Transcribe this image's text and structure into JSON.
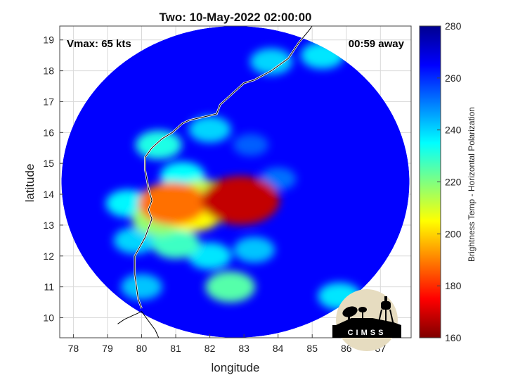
{
  "chart_data": {
    "type": "heatmap",
    "title": "Two: 10-May-2022 02:00:00",
    "xlabel": "longitude",
    "ylabel": "latitude",
    "xlim": [
      77.6,
      87.9
    ],
    "ylim": [
      9.35,
      19.45
    ],
    "xticks": [
      78,
      79,
      80,
      81,
      82,
      83,
      84,
      85,
      86,
      87
    ],
    "yticks": [
      10,
      11,
      12,
      13,
      14,
      15,
      16,
      17,
      18,
      19
    ],
    "grid": true,
    "annotations": {
      "vmax": "Vmax: 65 kts",
      "time_away": "00:59 away"
    },
    "colorbar": {
      "label": "Brightness Temp - Horizontal Polarization",
      "range": [
        160,
        280
      ],
      "ticks": [
        160,
        180,
        200,
        220,
        240,
        260,
        280
      ],
      "colors": [
        "#7f0000",
        "#ff0000",
        "#ff8000",
        "#ffff00",
        "#80ff80",
        "#00ffff",
        "#0080ff",
        "#0000ff",
        "#00008f"
      ]
    },
    "swath": {
      "center_lon": 82.75,
      "center_lat": 14.4,
      "background_temp": 265
    },
    "cold_regions": [
      {
        "lon": 82.9,
        "lat": 13.8,
        "temp": 168
      },
      {
        "lon": 80.9,
        "lat": 13.7,
        "temp": 188
      },
      {
        "lon": 81.5,
        "lat": 13.4,
        "temp": 205
      },
      {
        "lon": 81.8,
        "lat": 13.9,
        "temp": 212
      },
      {
        "lon": 80.5,
        "lat": 13.2,
        "temp": 218
      },
      {
        "lon": 81.0,
        "lat": 12.4,
        "temp": 228
      },
      {
        "lon": 82.6,
        "lat": 11.0,
        "temp": 225
      },
      {
        "lon": 81.2,
        "lat": 14.6,
        "temp": 235
      },
      {
        "lon": 80.5,
        "lat": 15.6,
        "temp": 232
      },
      {
        "lon": 82.0,
        "lat": 12.0,
        "temp": 238
      },
      {
        "lon": 85.3,
        "lat": 18.5,
        "temp": 238
      },
      {
        "lon": 83.8,
        "lat": 18.3,
        "temp": 240
      },
      {
        "lon": 79.6,
        "lat": 13.7,
        "temp": 236
      },
      {
        "lon": 79.8,
        "lat": 12.5,
        "temp": 240
      },
      {
        "lon": 80.0,
        "lat": 11.0,
        "temp": 242
      },
      {
        "lon": 82.0,
        "lat": 16.1,
        "temp": 240
      },
      {
        "lon": 83.3,
        "lat": 12.2,
        "temp": 242
      },
      {
        "lon": 85.8,
        "lat": 10.7,
        "temp": 238
      },
      {
        "lon": 84.0,
        "lat": 14.5,
        "temp": 252
      },
      {
        "lon": 83.2,
        "lat": 15.6,
        "temp": 254
      }
    ],
    "coastline": [
      [
        80.0,
        10.3
      ],
      [
        79.9,
        10.6
      ],
      [
        79.8,
        11.4
      ],
      [
        79.8,
        12.0
      ],
      [
        80.1,
        12.6
      ],
      [
        80.3,
        13.2
      ],
      [
        80.2,
        13.5
      ],
      [
        80.3,
        13.8
      ],
      [
        80.2,
        14.2
      ],
      [
        80.1,
        14.8
      ],
      [
        80.1,
        15.2
      ],
      [
        80.3,
        15.5
      ],
      [
        80.6,
        15.8
      ],
      [
        80.9,
        16.0
      ],
      [
        81.2,
        16.3
      ],
      [
        81.4,
        16.4
      ],
      [
        81.8,
        16.5
      ],
      [
        82.2,
        16.6
      ],
      [
        82.3,
        16.9
      ],
      [
        82.6,
        17.2
      ],
      [
        83.0,
        17.6
      ],
      [
        83.3,
        17.7
      ],
      [
        83.8,
        18.0
      ],
      [
        84.3,
        18.4
      ],
      [
        84.6,
        18.9
      ],
      [
        84.9,
        19.3
      ],
      [
        85.0,
        19.45
      ]
    ],
    "sri_lanka_coast": [
      [
        79.3,
        9.8
      ],
      [
        79.5,
        9.95
      ],
      [
        79.8,
        10.1
      ],
      [
        80.0,
        10.2
      ],
      [
        80.2,
        9.9
      ],
      [
        80.4,
        9.6
      ],
      [
        80.5,
        9.35
      ]
    ]
  },
  "logo": {
    "text": "CIMSS"
  }
}
